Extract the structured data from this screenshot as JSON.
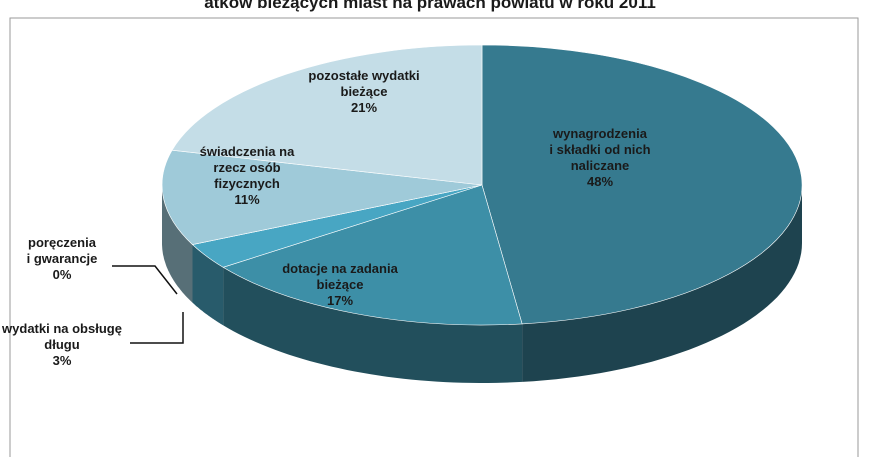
{
  "chart_data": {
    "type": "pie3d",
    "title": "atków bieżących miast na prawach powiatu w roku 2011",
    "categories": [
      "wynagrodzenia\ni składki od nich\nnaliczane",
      "dotacje na zadania\nbieżące",
      "wydatki na obsługę\ndługu",
      "poręczenia\ni gwarancje",
      "świadczenia na\nrzecz osób\nfizycznych",
      "pozostałe wydatki\nbieżące"
    ],
    "values": [
      48,
      17,
      3,
      0,
      11,
      21
    ],
    "value_labels": [
      "48%",
      "17%",
      "3%",
      "0%",
      "11%",
      "21%"
    ],
    "colors": [
      "#367a8f",
      "#3d8fa7",
      "#48a6c3",
      "#5fb3cc",
      "#9fcad9",
      "#c4dde7"
    ]
  }
}
